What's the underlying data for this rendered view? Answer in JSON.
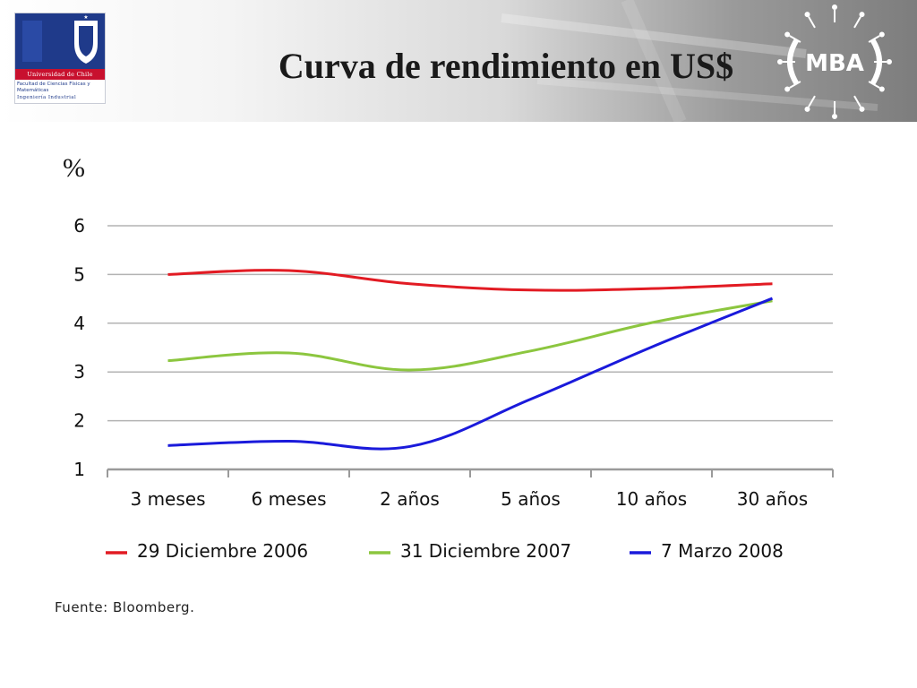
{
  "header": {
    "title": "Curva de rendimiento en US$",
    "university_logo": {
      "name": "Universidad de Chile",
      "line1": "Facultad de Ciencias Físicas y Matemáticas",
      "line2": "Ingeniería Industrial"
    },
    "mba_logo": "MBA"
  },
  "chart_data": {
    "type": "line",
    "title": "",
    "ylabel": "%",
    "xlabel": "",
    "categories": [
      "3 meses",
      "6 meses",
      "2 años",
      "5 años",
      "10 años",
      "30 años"
    ],
    "ylim": [
      1,
      6
    ],
    "yticks": [
      1,
      2,
      3,
      4,
      5,
      6
    ],
    "grid": true,
    "legend_position": "bottom",
    "series": [
      {
        "name": "29 Diciembre 2006",
        "color": "#e21b23",
        "values": [
          5.0,
          5.08,
          4.81,
          4.68,
          4.71,
          4.81
        ]
      },
      {
        "name": "31 Diciembre 2007",
        "color": "#8cc63f",
        "values": [
          3.23,
          3.39,
          3.04,
          3.43,
          4.01,
          4.46
        ]
      },
      {
        "name": "7 Marzo 2008",
        "color": "#1a1adb",
        "values": [
          1.49,
          1.58,
          1.47,
          2.44,
          3.51,
          4.51
        ]
      }
    ]
  },
  "footer": {
    "source": "Fuente: Bloomberg."
  }
}
